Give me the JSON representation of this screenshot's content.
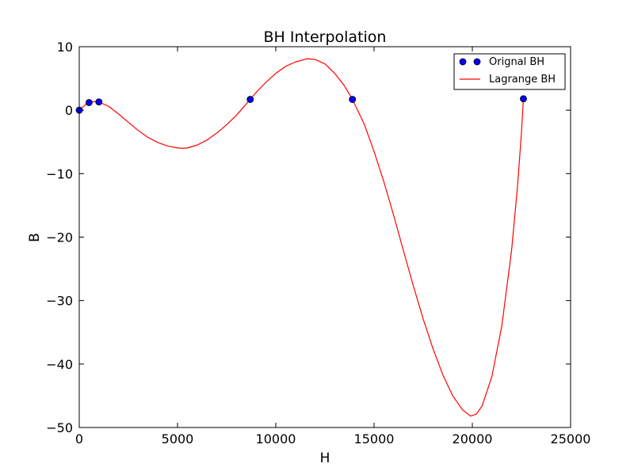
{
  "chart_data": {
    "type": "line",
    "title": "BH Interpolation",
    "xlabel": "H",
    "ylabel": "B",
    "xlim": [
      0,
      25000
    ],
    "ylim": [
      -50,
      10
    ],
    "xticks": [
      0,
      5000,
      10000,
      15000,
      20000,
      25000
    ],
    "xtick_labels": [
      "0",
      "5000",
      "10000",
      "15000",
      "20000",
      "25000"
    ],
    "yticks": [
      10,
      0,
      -10,
      -20,
      -30,
      -40,
      -50
    ],
    "ytick_labels": [
      "10",
      "0",
      "−10",
      "−20",
      "−30",
      "−40",
      "−50"
    ],
    "grid": false,
    "legend_position": "top-right",
    "series": [
      {
        "name": "Orignal BH",
        "kind": "scatter",
        "color": "#0000ff",
        "edge_color": "#000000",
        "points": [
          {
            "x": 0,
            "y": 0
          },
          {
            "x": 500,
            "y": 1.2
          },
          {
            "x": 1000,
            "y": 1.3
          },
          {
            "x": 8700,
            "y": 1.7
          },
          {
            "x": 13900,
            "y": 1.7
          },
          {
            "x": 22600,
            "y": 1.8
          }
        ]
      },
      {
        "name": "Lagrange BH",
        "kind": "line",
        "color": "#ff0000",
        "points": [
          {
            "x": 0,
            "y": 0.0
          },
          {
            "x": 250,
            "y": 0.7
          },
          {
            "x": 500,
            "y": 1.2
          },
          {
            "x": 750,
            "y": 1.35
          },
          {
            "x": 1000,
            "y": 1.3
          },
          {
            "x": 1500,
            "y": 0.6
          },
          {
            "x": 2000,
            "y": -0.6
          },
          {
            "x": 2500,
            "y": -1.9
          },
          {
            "x": 3000,
            "y": -3.2
          },
          {
            "x": 3500,
            "y": -4.3
          },
          {
            "x": 4000,
            "y": -5.1
          },
          {
            "x": 4500,
            "y": -5.65
          },
          {
            "x": 5000,
            "y": -5.95
          },
          {
            "x": 5200,
            "y": -6.0
          },
          {
            "x": 5500,
            "y": -5.95
          },
          {
            "x": 6000,
            "y": -5.5
          },
          {
            "x": 6500,
            "y": -4.7
          },
          {
            "x": 7000,
            "y": -3.6
          },
          {
            "x": 7500,
            "y": -2.3
          },
          {
            "x": 8000,
            "y": -0.8
          },
          {
            "x": 8700,
            "y": 1.7
          },
          {
            "x": 9000,
            "y": 2.8
          },
          {
            "x": 9500,
            "y": 4.4
          },
          {
            "x": 10000,
            "y": 5.8
          },
          {
            "x": 10500,
            "y": 6.9
          },
          {
            "x": 11000,
            "y": 7.6
          },
          {
            "x": 11600,
            "y": 8.1
          },
          {
            "x": 12000,
            "y": 8.0
          },
          {
            "x": 12500,
            "y": 7.3
          },
          {
            "x": 13000,
            "y": 5.8
          },
          {
            "x": 13500,
            "y": 3.8
          },
          {
            "x": 13900,
            "y": 1.7
          },
          {
            "x": 14500,
            "y": -2.2
          },
          {
            "x": 15000,
            "y": -6.5
          },
          {
            "x": 15500,
            "y": -11.3
          },
          {
            "x": 16000,
            "y": -16.6
          },
          {
            "x": 16500,
            "y": -22.2
          },
          {
            "x": 17000,
            "y": -27.7
          },
          {
            "x": 17500,
            "y": -32.9
          },
          {
            "x": 18000,
            "y": -37.6
          },
          {
            "x": 18500,
            "y": -41.7
          },
          {
            "x": 19000,
            "y": -45.0
          },
          {
            "x": 19500,
            "y": -47.2
          },
          {
            "x": 19900,
            "y": -48.2
          },
          {
            "x": 20200,
            "y": -47.9
          },
          {
            "x": 20500,
            "y": -46.6
          },
          {
            "x": 21000,
            "y": -41.9
          },
          {
            "x": 21500,
            "y": -34.0
          },
          {
            "x": 22000,
            "y": -22.0
          },
          {
            "x": 22300,
            "y": -12.0
          },
          {
            "x": 22500,
            "y": -3.5
          },
          {
            "x": 22600,
            "y": 1.8
          }
        ]
      }
    ]
  }
}
